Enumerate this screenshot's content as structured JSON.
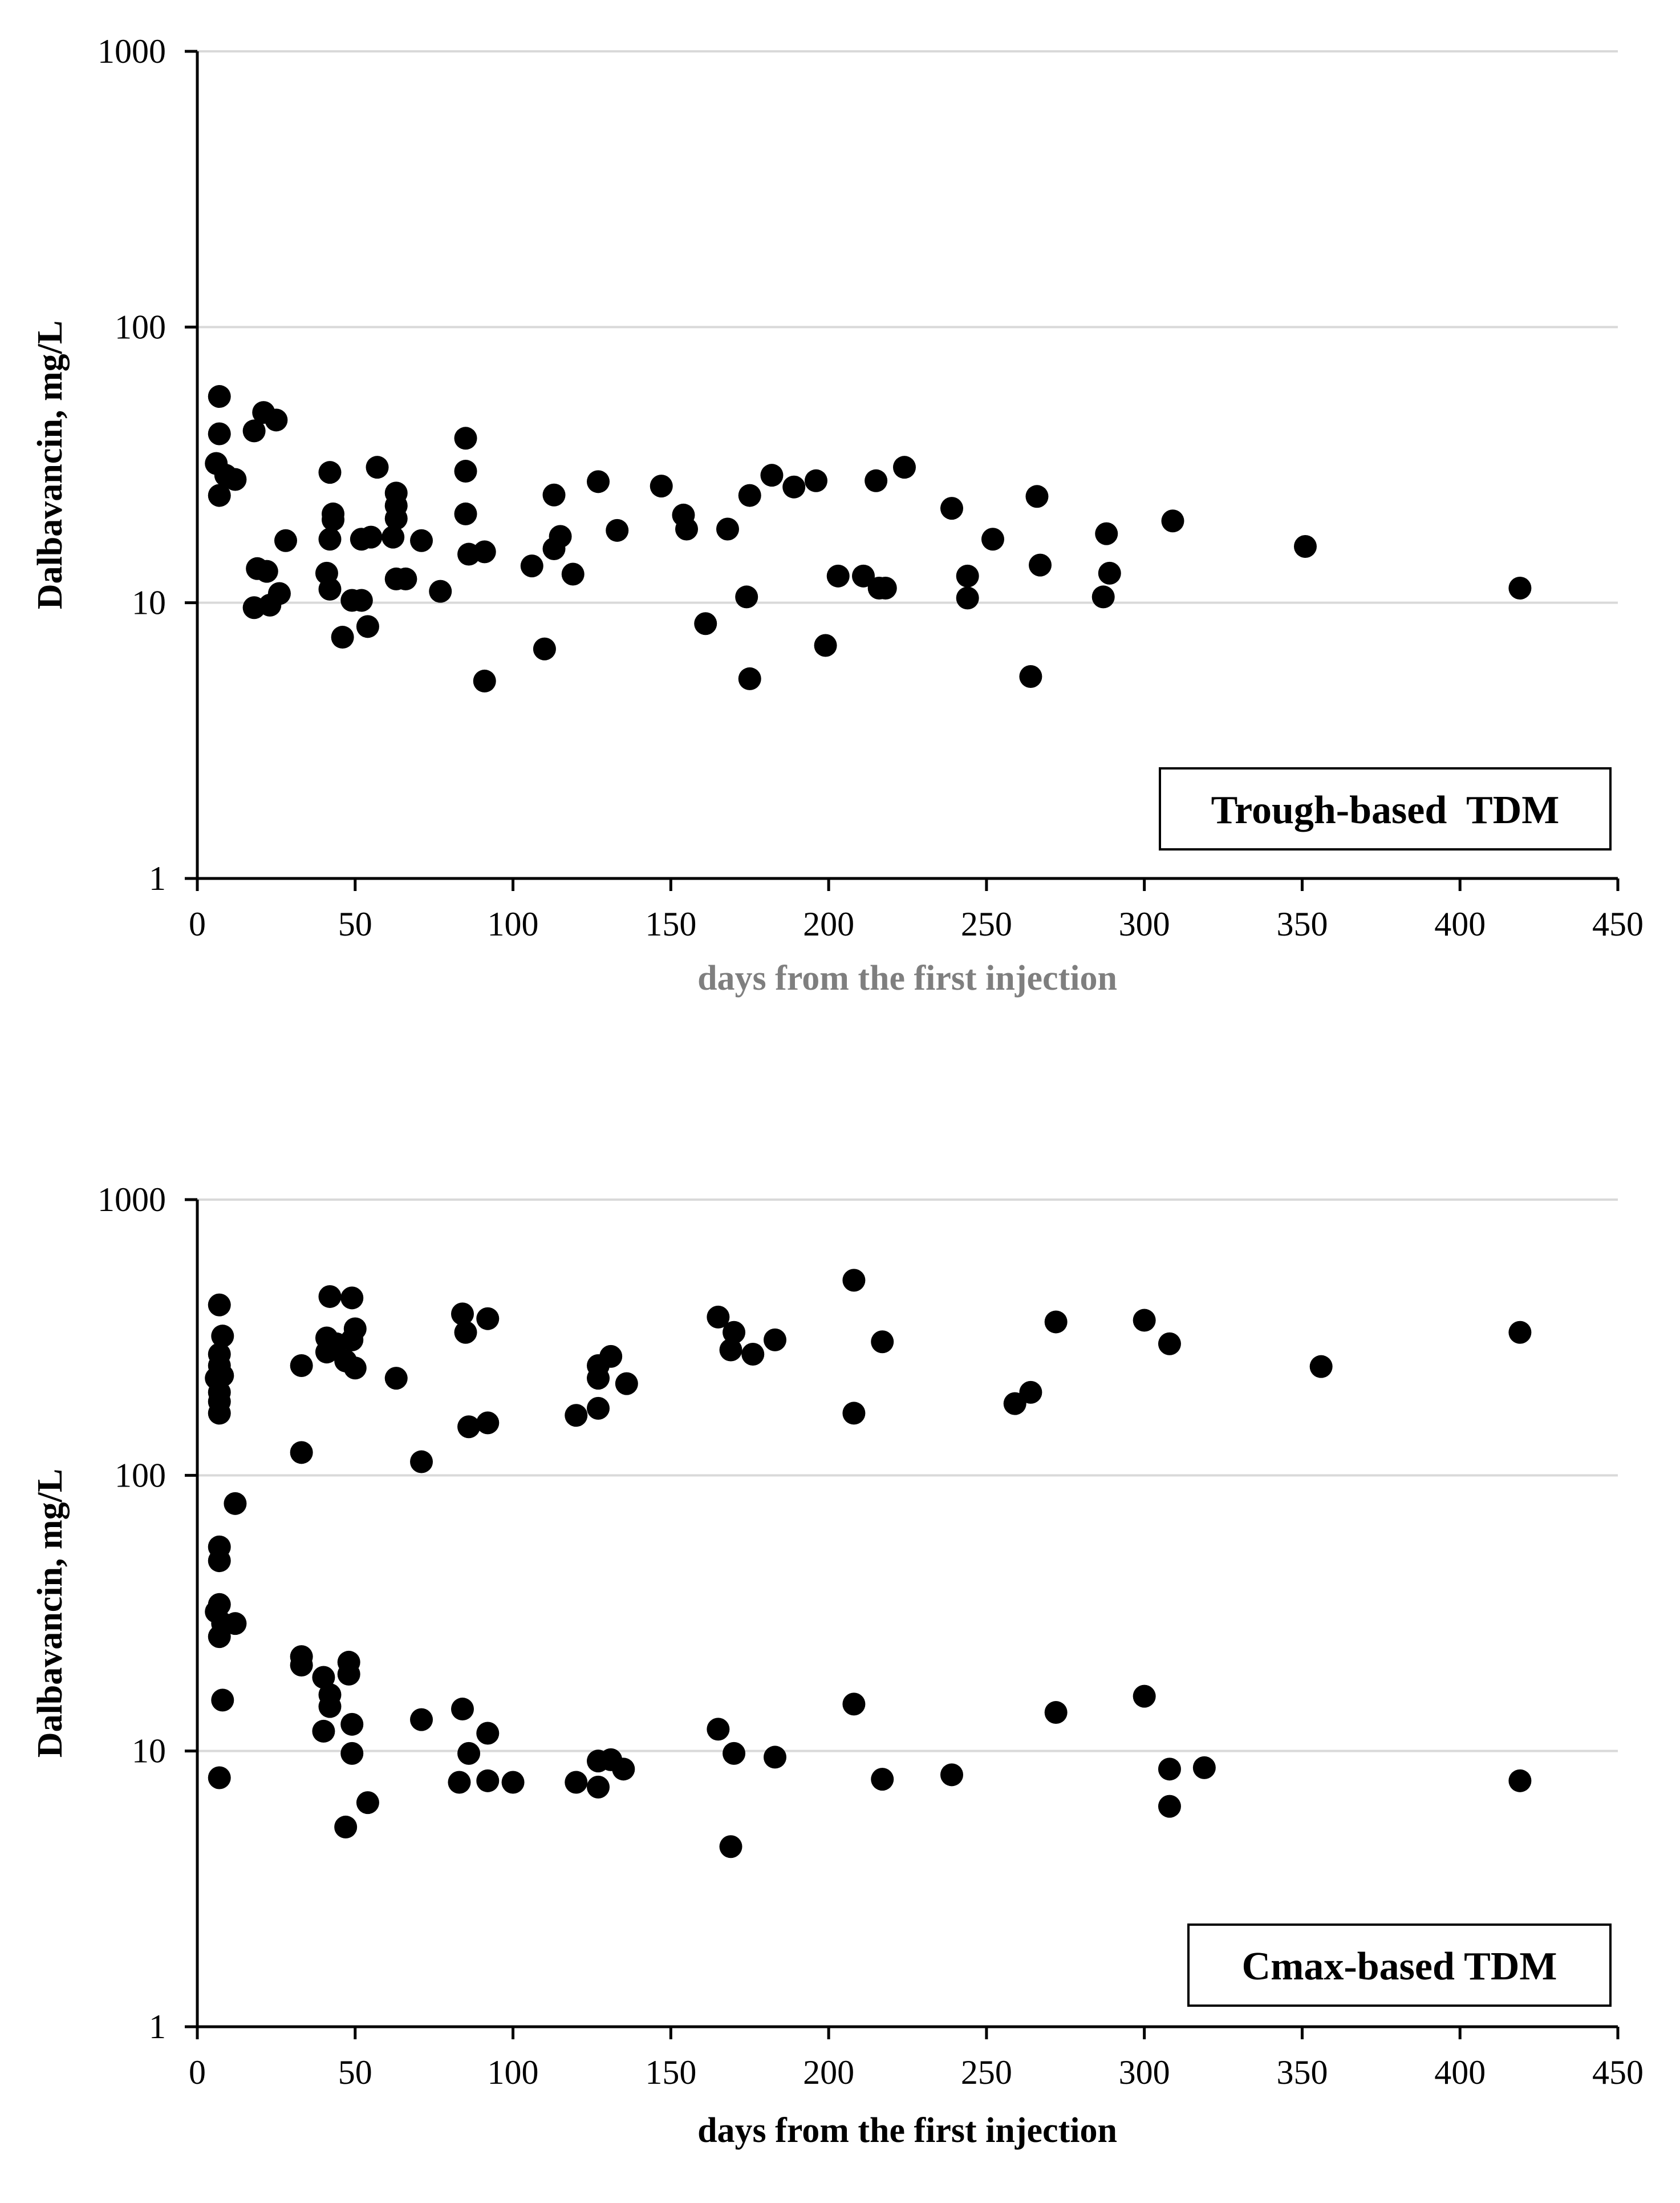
{
  "chart_data": [
    {
      "type": "scatter",
      "title": "",
      "annotation": "Trough-based  TDM",
      "xlabel": "days from the first injection",
      "ylabel": "Dalbavancin, mg/L",
      "xlim": [
        0,
        450
      ],
      "ylim": [
        1,
        1000
      ],
      "yscale": "log",
      "xticks": [
        "0",
        "50",
        "100",
        "150",
        "200",
        "250",
        "300",
        "350",
        "400",
        "450"
      ],
      "yticks": [
        "1",
        "10",
        "100",
        "1000"
      ],
      "grid": "horizontal",
      "xlabel_color": "#7f7f7f",
      "marker_color": "#000000",
      "annotation_position": "bottom-right",
      "points": [
        [
          7,
          56
        ],
        [
          7,
          41
        ],
        [
          6,
          32
        ],
        [
          7,
          24.5
        ],
        [
          12,
          28
        ],
        [
          9,
          29
        ],
        [
          18,
          42
        ],
        [
          21,
          49
        ],
        [
          25,
          46
        ],
        [
          19,
          13.3
        ],
        [
          22,
          13
        ],
        [
          18,
          9.6
        ],
        [
          23,
          9.8
        ],
        [
          26,
          10.8
        ],
        [
          28,
          16.8
        ],
        [
          42,
          29.7
        ],
        [
          43,
          21
        ],
        [
          43,
          20
        ],
        [
          42,
          17
        ],
        [
          41,
          12.8
        ],
        [
          42,
          11.2
        ],
        [
          46,
          7.5
        ],
        [
          49,
          10.2
        ],
        [
          52,
          10.2
        ],
        [
          54,
          8.2
        ],
        [
          52,
          17
        ],
        [
          55,
          17.3
        ],
        [
          57,
          31
        ],
        [
          62,
          17.3
        ],
        [
          63,
          25
        ],
        [
          63,
          22.5
        ],
        [
          63,
          20.2
        ],
        [
          63,
          12.2
        ],
        [
          66,
          12.2
        ],
        [
          71,
          16.8
        ],
        [
          77,
          11
        ],
        [
          85,
          39.5
        ],
        [
          85,
          30
        ],
        [
          85,
          21
        ],
        [
          86,
          15
        ],
        [
          91,
          15.3
        ],
        [
          91,
          5.2
        ],
        [
          106,
          13.6
        ],
        [
          110,
          6.8
        ],
        [
          113,
          24.6
        ],
        [
          113,
          15.7
        ],
        [
          115,
          17.4
        ],
        [
          119,
          12.7
        ],
        [
          127,
          27.5
        ],
        [
          133,
          18.3
        ],
        [
          147,
          26.5
        ],
        [
          154,
          20.8
        ],
        [
          155,
          18.5
        ],
        [
          161,
          8.4
        ],
        [
          168,
          18.5
        ],
        [
          174,
          10.5
        ],
        [
          175,
          24.5
        ],
        [
          175,
          5.3
        ],
        [
          182,
          29
        ],
        [
          189,
          26.3
        ],
        [
          196,
          27.7
        ],
        [
          199,
          7
        ],
        [
          203,
          12.5
        ],
        [
          211,
          12.5
        ],
        [
          215,
          27.7
        ],
        [
          216,
          11.3
        ],
        [
          218,
          11.3
        ],
        [
          224,
          31
        ],
        [
          239,
          22
        ],
        [
          244,
          12.5
        ],
        [
          244,
          10.4
        ],
        [
          252,
          17
        ],
        [
          264,
          5.4
        ],
        [
          266,
          24.3
        ],
        [
          267,
          13.7
        ],
        [
          287,
          10.5
        ],
        [
          288,
          17.8
        ],
        [
          289,
          12.8
        ],
        [
          309,
          19.8
        ],
        [
          351,
          16
        ],
        [
          419,
          11.3
        ]
      ]
    },
    {
      "type": "scatter",
      "title": "",
      "annotation": "Cmax-based TDM",
      "xlabel": "days from the first injection",
      "ylabel": "Dalbavancin, mg/L",
      "xlim": [
        0,
        450
      ],
      "ylim": [
        1,
        1000
      ],
      "yscale": "log",
      "xticks": [
        "0",
        "50",
        "100",
        "150",
        "200",
        "250",
        "300",
        "350",
        "400",
        "450"
      ],
      "yticks": [
        "1",
        "10",
        "100",
        "1000"
      ],
      "grid": "horizontal",
      "xlabel_color": "#000000",
      "marker_color": "#000000",
      "annotation_position": "bottom-right",
      "points": [
        [
          7,
          415
        ],
        [
          8,
          320
        ],
        [
          7,
          275
        ],
        [
          7,
          250
        ],
        [
          8,
          230
        ],
        [
          6,
          225
        ],
        [
          7,
          200
        ],
        [
          7,
          185
        ],
        [
          7,
          168
        ],
        [
          12,
          79
        ],
        [
          7,
          55
        ],
        [
          7,
          49
        ],
        [
          7,
          34
        ],
        [
          6,
          32
        ],
        [
          8,
          29
        ],
        [
          12,
          29
        ],
        [
          7,
          26
        ],
        [
          8,
          15.3
        ],
        [
          7,
          8
        ],
        [
          33,
          250
        ],
        [
          33,
          121
        ],
        [
          33,
          22
        ],
        [
          33,
          20.5
        ],
        [
          41,
          315
        ],
        [
          41,
          280
        ],
        [
          42,
          445
        ],
        [
          44,
          300
        ],
        [
          47,
          260
        ],
        [
          49,
          440
        ],
        [
          49,
          310
        ],
        [
          50,
          340
        ],
        [
          50,
          245
        ],
        [
          63,
          225
        ],
        [
          71,
          112
        ],
        [
          40,
          18.5
        ],
        [
          42,
          16
        ],
        [
          42,
          14.5
        ],
        [
          40,
          11.8
        ],
        [
          48,
          21
        ],
        [
          48,
          19
        ],
        [
          49,
          12.5
        ],
        [
          49,
          9.8
        ],
        [
          47,
          5.3
        ],
        [
          54,
          6.5
        ],
        [
          71,
          13
        ],
        [
          84,
          385
        ],
        [
          85,
          330
        ],
        [
          92,
          370
        ],
        [
          86,
          150
        ],
        [
          92,
          155
        ],
        [
          84,
          14.2
        ],
        [
          86,
          9.8
        ],
        [
          92,
          11.6
        ],
        [
          83,
          7.7
        ],
        [
          92,
          7.8
        ],
        [
          100,
          7.7
        ],
        [
          120,
          165
        ],
        [
          127,
          250
        ],
        [
          127,
          225
        ],
        [
          127,
          175
        ],
        [
          131,
          270
        ],
        [
          136,
          215
        ],
        [
          120,
          7.7
        ],
        [
          127,
          9.2
        ],
        [
          127,
          7.4
        ],
        [
          131,
          9.3
        ],
        [
          135,
          8.6
        ],
        [
          165,
          375
        ],
        [
          169,
          285
        ],
        [
          170,
          330
        ],
        [
          176,
          275
        ],
        [
          183,
          310
        ],
        [
          208,
          510
        ],
        [
          208,
          168
        ],
        [
          217,
          305
        ],
        [
          165,
          12
        ],
        [
          170,
          9.8
        ],
        [
          169,
          4.5
        ],
        [
          183,
          9.5
        ],
        [
          208,
          14.8
        ],
        [
          217,
          7.9
        ],
        [
          239,
          8.2
        ],
        [
          259,
          182
        ],
        [
          264,
          200
        ],
        [
          272,
          360
        ],
        [
          272,
          13.8
        ],
        [
          300,
          365
        ],
        [
          308,
          300
        ],
        [
          300,
          15.8
        ],
        [
          308,
          8.6
        ],
        [
          308,
          6.3
        ],
        [
          319,
          8.7
        ],
        [
          356,
          248
        ],
        [
          419,
          330
        ],
        [
          419,
          7.8
        ]
      ]
    }
  ]
}
